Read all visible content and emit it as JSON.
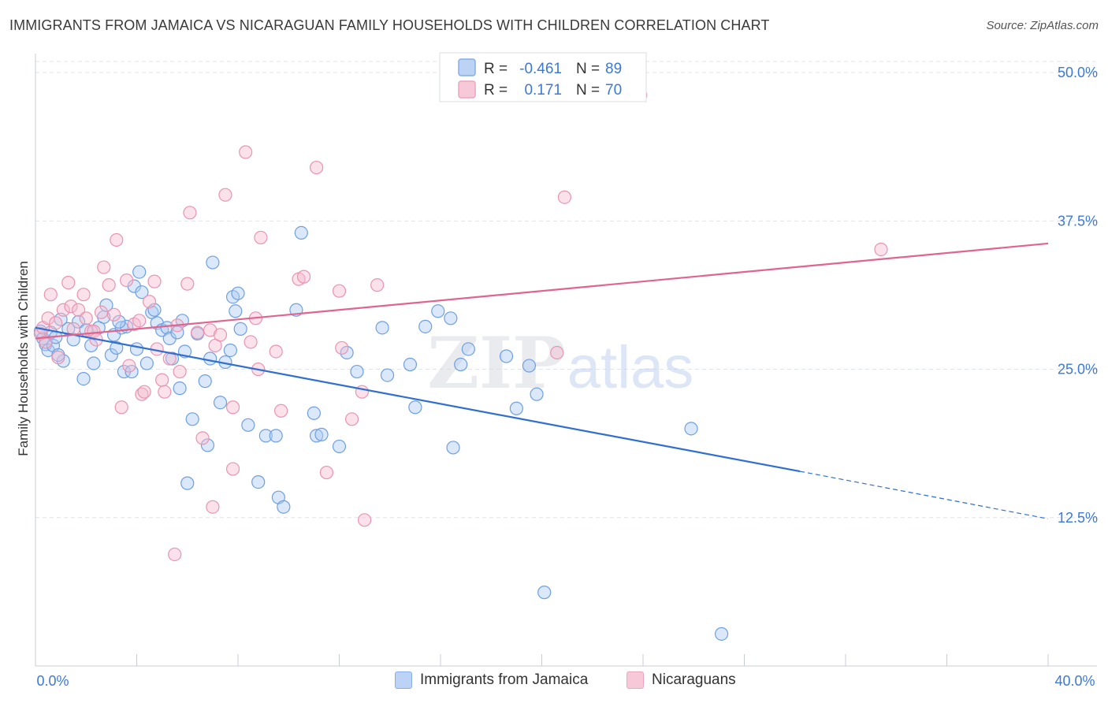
{
  "title": "IMMIGRANTS FROM JAMAICA VS NICARAGUAN FAMILY HOUSEHOLDS WITH CHILDREN CORRELATION CHART",
  "source": "Source: ZipAtlas.com",
  "watermark": {
    "zip": "ZIP",
    "atlas": "atlas"
  },
  "colors": {
    "blue_fill": "#aecbf2",
    "blue_stroke": "#6f9fe0",
    "blue_line": "#2f6fd1",
    "pink_fill": "#f5bdd0",
    "pink_stroke": "#e894b2",
    "pink_line": "#e0648e",
    "axis_label": "#3c78d8",
    "grid": "#dfe3ea"
  },
  "legend": [
    {
      "r_label": "R =",
      "r_value": "-0.461",
      "n_label": "N =",
      "n_value": "89"
    },
    {
      "r_label": "R =",
      "r_value": "0.171",
      "n_label": "N =",
      "n_value": "70"
    }
  ],
  "chart_data": {
    "type": "scatter",
    "xlabel": "",
    "ylabel": "Family Households with Children",
    "xlim": [
      0,
      40
    ],
    "ylim": [
      0,
      52
    ],
    "x_tick_labels": {
      "min": "0.0%",
      "max": "40.0%"
    },
    "y_ticks": [
      12.5,
      25.0,
      37.5,
      50.0
    ],
    "y_tick_labels": [
      "12.5%",
      "25.0%",
      "37.5%",
      "50.0%"
    ],
    "grid": true,
    "legend_position": "top-center",
    "series": [
      {
        "name": "Immigrants from Jamaica",
        "color": "blue",
        "trend": {
          "x": [
            0,
            30.2
          ],
          "y": [
            28.5,
            16.4
          ],
          "dashed_to": [
            40,
            12.4
          ]
        },
        "points": [
          [
            0.2,
            28.2
          ],
          [
            0.3,
            27.6
          ],
          [
            0.4,
            27.1
          ],
          [
            0.5,
            26.6
          ],
          [
            0.6,
            28.1
          ],
          [
            0.7,
            27.0
          ],
          [
            0.8,
            27.7
          ],
          [
            1.0,
            29.2
          ],
          [
            1.1,
            25.7
          ],
          [
            1.3,
            28.4
          ],
          [
            1.5,
            27.5
          ],
          [
            1.7,
            29.0
          ],
          [
            1.9,
            24.2
          ],
          [
            2.0,
            28.3
          ],
          [
            2.2,
            27.0
          ],
          [
            2.3,
            25.5
          ],
          [
            2.5,
            28.5
          ],
          [
            2.7,
            29.4
          ],
          [
            2.8,
            30.4
          ],
          [
            3.0,
            26.2
          ],
          [
            3.1,
            27.9
          ],
          [
            3.2,
            26.8
          ],
          [
            3.4,
            28.5
          ],
          [
            3.5,
            24.8
          ],
          [
            3.6,
            28.6
          ],
          [
            3.8,
            24.8
          ],
          [
            3.9,
            32.0
          ],
          [
            4.0,
            26.7
          ],
          [
            4.1,
            33.2
          ],
          [
            4.2,
            31.5
          ],
          [
            4.4,
            25.5
          ],
          [
            4.6,
            29.8
          ],
          [
            4.7,
            30.0
          ],
          [
            4.8,
            28.9
          ],
          [
            5.0,
            28.3
          ],
          [
            5.2,
            28.5
          ],
          [
            5.3,
            27.6
          ],
          [
            5.4,
            25.9
          ],
          [
            5.6,
            28.1
          ],
          [
            5.7,
            23.4
          ],
          [
            5.8,
            29.1
          ],
          [
            5.9,
            26.5
          ],
          [
            6.0,
            15.4
          ],
          [
            6.2,
            20.8
          ],
          [
            6.4,
            28.0
          ],
          [
            6.7,
            24.0
          ],
          [
            6.8,
            18.6
          ],
          [
            6.9,
            25.9
          ],
          [
            7.0,
            34.0
          ],
          [
            7.3,
            22.2
          ],
          [
            7.5,
            25.6
          ],
          [
            7.7,
            26.6
          ],
          [
            7.8,
            31.1
          ],
          [
            7.9,
            29.9
          ],
          [
            8.0,
            31.4
          ],
          [
            8.1,
            28.4
          ],
          [
            8.4,
            20.3
          ],
          [
            8.8,
            15.5
          ],
          [
            9.1,
            19.4
          ],
          [
            9.5,
            19.4
          ],
          [
            9.6,
            14.2
          ],
          [
            9.8,
            13.4
          ],
          [
            10.3,
            30.0
          ],
          [
            10.5,
            36.5
          ],
          [
            11.0,
            21.3
          ],
          [
            11.1,
            19.4
          ],
          [
            11.3,
            19.5
          ],
          [
            12.3,
            26.4
          ],
          [
            12.7,
            24.8
          ],
          [
            13.7,
            28.5
          ],
          [
            13.9,
            24.5
          ],
          [
            14.8,
            25.4
          ],
          [
            15.0,
            21.8
          ],
          [
            15.4,
            28.6
          ],
          [
            15.9,
            29.9
          ],
          [
            16.4,
            29.3
          ],
          [
            16.8,
            25.4
          ],
          [
            17.1,
            26.7
          ],
          [
            18.6,
            26.1
          ],
          [
            19.0,
            21.7
          ],
          [
            19.5,
            25.3
          ],
          [
            19.8,
            22.9
          ],
          [
            20.1,
            6.2
          ],
          [
            25.9,
            20.0
          ],
          [
            27.1,
            2.7
          ],
          [
            16.5,
            18.4
          ],
          [
            0.9,
            26.2
          ],
          [
            3.3,
            29.0
          ],
          [
            12.0,
            18.5
          ]
        ]
      },
      {
        "name": "Nicaraguans",
        "color": "pink",
        "trend": {
          "x": [
            0,
            40
          ],
          "y": [
            27.6,
            35.6
          ]
        },
        "points": [
          [
            0.2,
            28.0
          ],
          [
            0.3,
            28.5
          ],
          [
            0.5,
            29.3
          ],
          [
            0.6,
            31.3
          ],
          [
            0.8,
            28.9
          ],
          [
            0.9,
            26.0
          ],
          [
            1.1,
            30.0
          ],
          [
            1.3,
            32.3
          ],
          [
            1.4,
            30.3
          ],
          [
            1.5,
            28.4
          ],
          [
            1.7,
            30.0
          ],
          [
            1.9,
            31.3
          ],
          [
            2.0,
            29.3
          ],
          [
            2.2,
            28.2
          ],
          [
            2.3,
            28.2
          ],
          [
            2.4,
            27.5
          ],
          [
            2.7,
            33.6
          ],
          [
            2.9,
            32.1
          ],
          [
            3.1,
            29.6
          ],
          [
            3.2,
            35.9
          ],
          [
            3.4,
            21.8
          ],
          [
            3.6,
            32.5
          ],
          [
            3.7,
            25.3
          ],
          [
            3.9,
            28.8
          ],
          [
            4.1,
            29.1
          ],
          [
            4.2,
            22.9
          ],
          [
            4.3,
            23.1
          ],
          [
            4.5,
            30.7
          ],
          [
            4.7,
            32.4
          ],
          [
            4.8,
            26.7
          ],
          [
            5.0,
            24.1
          ],
          [
            5.1,
            23.1
          ],
          [
            5.3,
            25.9
          ],
          [
            5.5,
            9.4
          ],
          [
            5.7,
            24.8
          ],
          [
            6.1,
            38.2
          ],
          [
            6.0,
            32.2
          ],
          [
            6.4,
            28.1
          ],
          [
            6.6,
            19.2
          ],
          [
            6.9,
            28.3
          ],
          [
            7.0,
            13.4
          ],
          [
            7.1,
            27.0
          ],
          [
            7.3,
            27.9
          ],
          [
            7.5,
            39.7
          ],
          [
            7.8,
            21.8
          ],
          [
            7.8,
            16.6
          ],
          [
            8.3,
            43.3
          ],
          [
            8.5,
            27.3
          ],
          [
            8.7,
            29.3
          ],
          [
            8.8,
            25.0
          ],
          [
            8.9,
            36.1
          ],
          [
            9.5,
            26.5
          ],
          [
            9.7,
            21.5
          ],
          [
            10.4,
            32.6
          ],
          [
            10.6,
            32.8
          ],
          [
            11.1,
            42.0
          ],
          [
            11.5,
            16.3
          ],
          [
            12.0,
            31.6
          ],
          [
            12.1,
            26.8
          ],
          [
            12.5,
            20.8
          ],
          [
            12.9,
            23.1
          ],
          [
            13.0,
            12.3
          ],
          [
            13.5,
            32.1
          ],
          [
            20.6,
            26.4
          ],
          [
            20.9,
            39.5
          ],
          [
            23.9,
            48.1
          ],
          [
            33.4,
            35.1
          ],
          [
            5.6,
            28.7
          ],
          [
            0.4,
            27.3
          ],
          [
            2.6,
            29.8
          ]
        ]
      }
    ]
  }
}
